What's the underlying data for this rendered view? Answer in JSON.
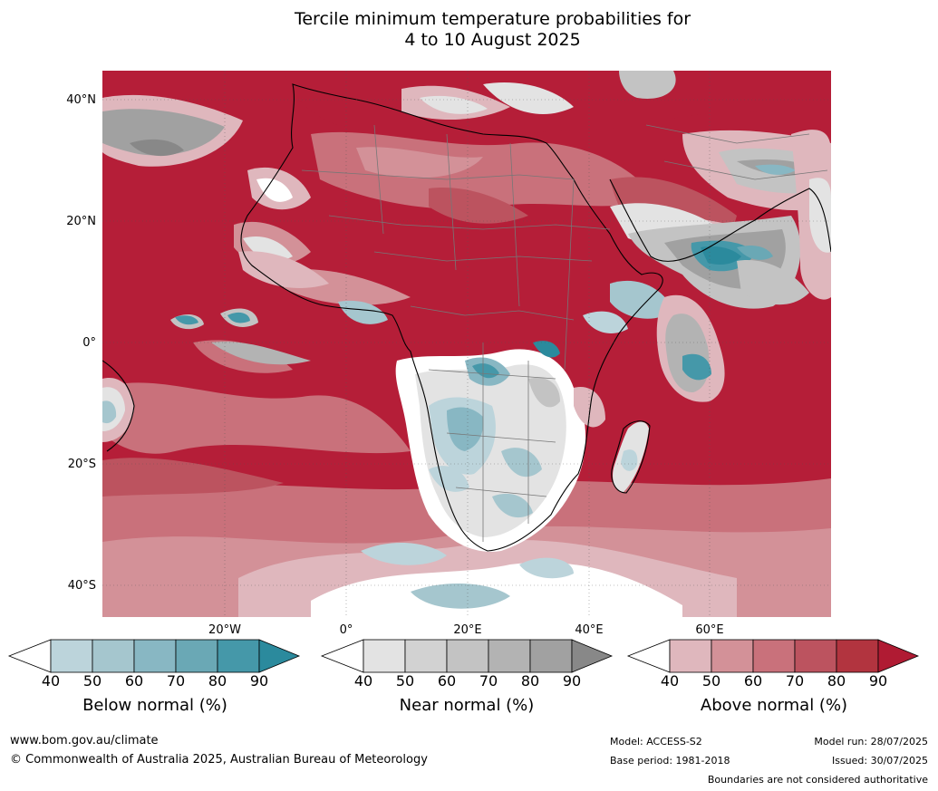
{
  "title": {
    "line1": "Tercile minimum temperature probabilities for",
    "line2": "4 to 10 August 2025"
  },
  "map": {
    "lat_labels": [
      "40°N",
      "20°N",
      "0°",
      "20°S",
      "40°S"
    ],
    "lon_labels": [
      "20°W",
      "0°",
      "20°E",
      "40°E",
      "60°E"
    ]
  },
  "colorbars": [
    {
      "name": "below",
      "title": "Below normal (%)",
      "ticks": [
        "40",
        "50",
        "60",
        "70",
        "80",
        "90"
      ],
      "colors": [
        "#ffffff",
        "#bcd4db",
        "#a5c6ce",
        "#88b7c3",
        "#6aa8b5",
        "#4598a9",
        "#2b8a9d"
      ]
    },
    {
      "name": "near",
      "title": "Near normal (%)",
      "ticks": [
        "40",
        "50",
        "60",
        "70",
        "80",
        "90"
      ],
      "colors": [
        "#ffffff",
        "#e3e3e3",
        "#d2d2d2",
        "#c3c3c3",
        "#b3b3b3",
        "#a1a1a1",
        "#888888"
      ]
    },
    {
      "name": "above",
      "title": "Above normal (%)",
      "ticks": [
        "40",
        "50",
        "60",
        "70",
        "80",
        "90"
      ],
      "colors": [
        "#ffffff",
        "#dfb7bd",
        "#d39198",
        "#c9717b",
        "#bc535f",
        "#b2343f",
        "#b01b33"
      ]
    }
  ],
  "footer": {
    "url": "www.bom.gov.au/climate",
    "copyright": "© Commonwealth of Australia 2025, Australian Bureau of Meteorology",
    "model": "Model: ACCESS-S2",
    "base_period": "Base period: 1981-2018",
    "model_run": "Model run: 28/07/2025",
    "issued": "Issued: 30/07/2025",
    "boundaries_note": "Boundaries are not considered authoritative"
  }
}
